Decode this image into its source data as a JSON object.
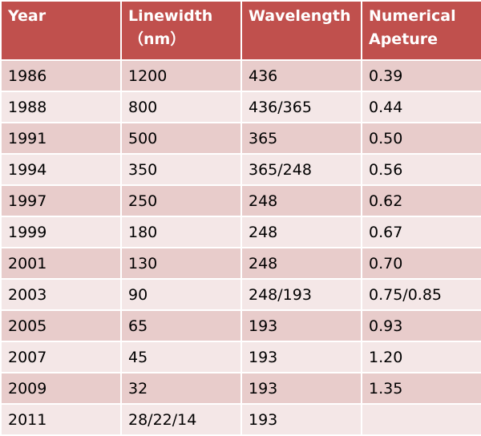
{
  "table": {
    "headers": [
      "Year",
      "Linewidth\n（nm）",
      "Wavelength",
      "Numerical\nApeture"
    ],
    "rows": [
      [
        "1986",
        "1200",
        "436",
        "0.39"
      ],
      [
        "1988",
        "800",
        "436/365",
        "0.44"
      ],
      [
        "1991",
        "500",
        "365",
        "0.50"
      ],
      [
        "1994",
        "350",
        "365/248",
        "0.56"
      ],
      [
        "1997",
        "250",
        "248",
        "0.62"
      ],
      [
        "1999",
        "180",
        "248",
        "0.67"
      ],
      [
        "2001",
        "130",
        "248",
        "0.70"
      ],
      [
        "2003",
        "90",
        "248/193",
        "0.75/0.85"
      ],
      [
        "2005",
        "65",
        "193",
        "0.93"
      ],
      [
        "2007",
        "45",
        "193",
        "1.20"
      ],
      [
        "2009",
        "32",
        "193",
        "1.35"
      ],
      [
        "2011",
        "28/22/14",
        "193",
        ""
      ]
    ]
  },
  "colors": {
    "header_bg": "#c0504d",
    "header_text": "#ffffff",
    "row_odd_bg": "#e8cccb",
    "row_even_bg": "#f4e7e7",
    "cell_text": "#000000"
  }
}
